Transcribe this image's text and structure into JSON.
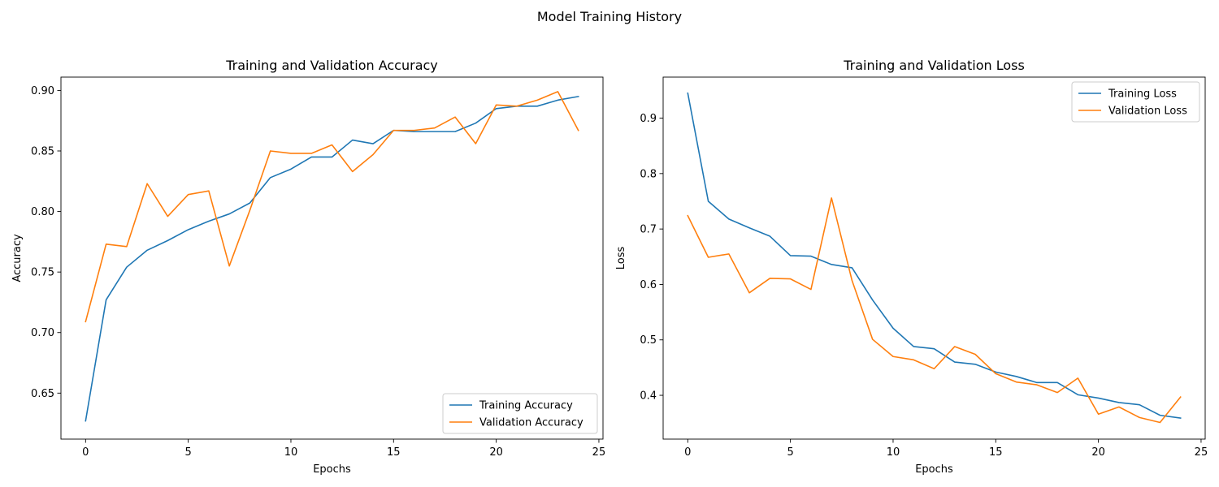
{
  "figure": {
    "suptitle": "Model Training History"
  },
  "chart_data": [
    {
      "type": "line",
      "title": "Training and Validation Accuracy",
      "xlabel": "Epochs",
      "ylabel": "Accuracy",
      "xlim": [
        -1.2,
        25.2
      ],
      "ylim": [
        0.612,
        0.911
      ],
      "xticks": [
        0,
        5,
        10,
        15,
        20,
        25
      ],
      "yticks": [
        0.65,
        0.7,
        0.75,
        0.8,
        0.85,
        0.9
      ],
      "yticks_labels": [
        "0.65",
        "0.70",
        "0.75",
        "0.80",
        "0.85",
        "0.90"
      ],
      "legend_position": "lower right",
      "grid": false,
      "x": [
        0,
        1,
        2,
        3,
        4,
        5,
        6,
        7,
        8,
        9,
        10,
        11,
        12,
        13,
        14,
        15,
        16,
        17,
        18,
        19,
        20,
        21,
        22,
        23,
        24
      ],
      "series": [
        {
          "name": "Training Accuracy",
          "color": "#1f77b4",
          "values": [
            0.627,
            0.727,
            0.754,
            0.768,
            0.776,
            0.785,
            0.792,
            0.798,
            0.807,
            0.828,
            0.835,
            0.845,
            0.845,
            0.859,
            0.856,
            0.867,
            0.866,
            0.866,
            0.866,
            0.873,
            0.885,
            0.887,
            0.887,
            0.892,
            0.895
          ]
        },
        {
          "name": "Validation Accuracy",
          "color": "#ff7f0e",
          "values": [
            0.709,
            0.773,
            0.771,
            0.823,
            0.796,
            0.814,
            0.817,
            0.755,
            0.801,
            0.85,
            0.848,
            0.848,
            0.855,
            0.833,
            0.847,
            0.867,
            0.867,
            0.869,
            0.878,
            0.856,
            0.888,
            0.887,
            0.892,
            0.899,
            0.867
          ]
        }
      ]
    },
    {
      "type": "line",
      "title": "Training and Validation Loss",
      "xlabel": "Epochs",
      "ylabel": "Loss",
      "xlim": [
        -1.2,
        25.2
      ],
      "ylim": [
        0.321,
        0.974
      ],
      "xticks": [
        0,
        5,
        10,
        15,
        20,
        25
      ],
      "yticks": [
        0.4,
        0.5,
        0.6,
        0.7,
        0.8,
        0.9
      ],
      "yticks_labels": [
        "0.4",
        "0.5",
        "0.6",
        "0.7",
        "0.8",
        "0.9"
      ],
      "legend_position": "upper right",
      "grid": false,
      "x": [
        0,
        1,
        2,
        3,
        4,
        5,
        6,
        7,
        8,
        9,
        10,
        11,
        12,
        13,
        14,
        15,
        16,
        17,
        18,
        19,
        20,
        21,
        22,
        23,
        24
      ],
      "series": [
        {
          "name": "Training Loss",
          "color": "#1f77b4",
          "values": [
            0.945,
            0.75,
            0.718,
            0.702,
            0.687,
            0.652,
            0.651,
            0.636,
            0.63,
            0.572,
            0.521,
            0.488,
            0.484,
            0.46,
            0.456,
            0.442,
            0.434,
            0.423,
            0.423,
            0.401,
            0.395,
            0.387,
            0.383,
            0.364,
            0.359
          ]
        },
        {
          "name": "Validation Loss",
          "color": "#ff7f0e",
          "values": [
            0.724,
            0.649,
            0.655,
            0.585,
            0.611,
            0.61,
            0.591,
            0.756,
            0.607,
            0.501,
            0.47,
            0.464,
            0.448,
            0.488,
            0.474,
            0.439,
            0.424,
            0.419,
            0.405,
            0.431,
            0.366,
            0.379,
            0.36,
            0.351,
            0.397
          ]
        }
      ]
    }
  ]
}
